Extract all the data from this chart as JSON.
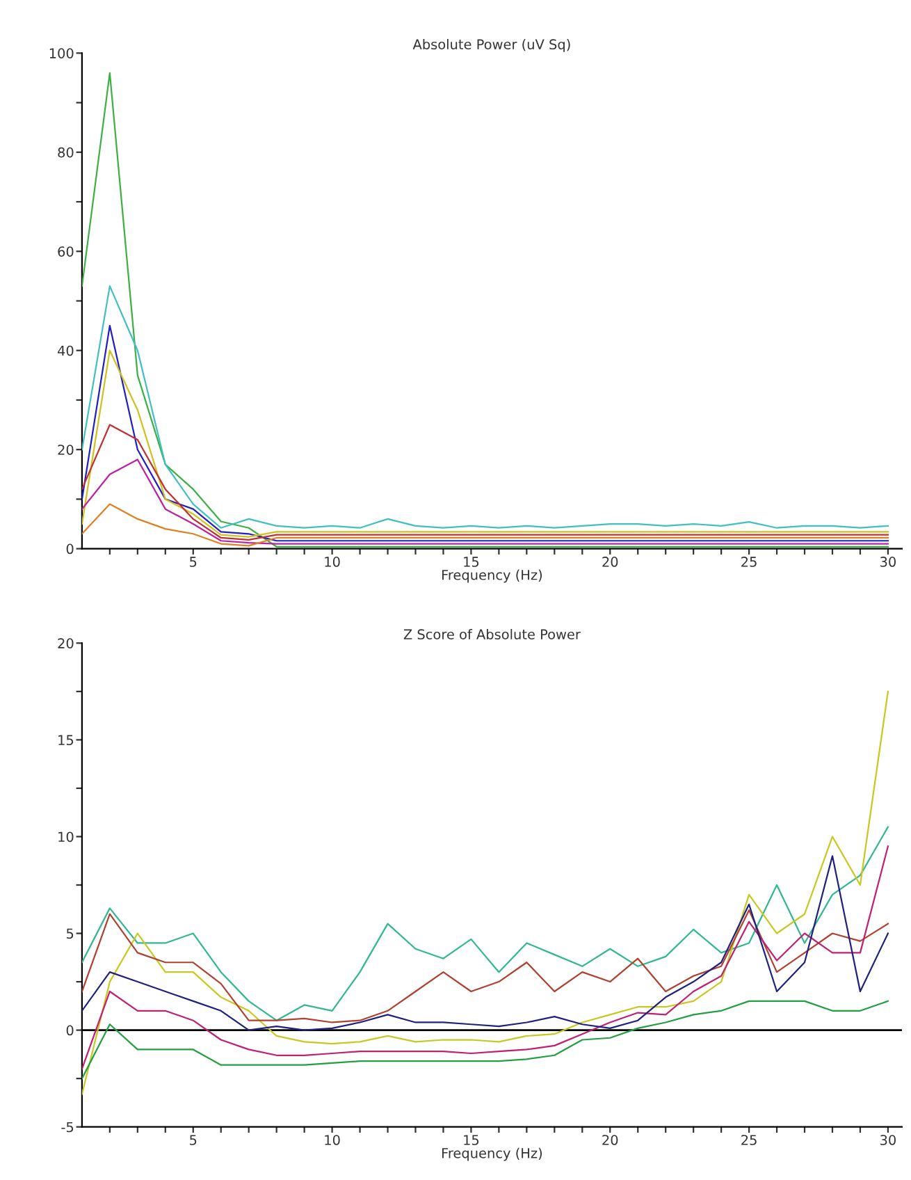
{
  "chart_data": [
    {
      "type": "line",
      "title": "Absolute Power (uV Sq)",
      "xlabel": "Frequency (Hz)",
      "x": [
        1,
        2,
        3,
        4,
        5,
        6,
        7,
        8,
        9,
        10,
        11,
        12,
        13,
        14,
        15,
        16,
        17,
        18,
        19,
        20,
        21,
        22,
        23,
        24,
        25,
        26,
        27,
        28,
        29,
        30
      ],
      "xlim": [
        1,
        30.5
      ],
      "ylim": [
        0,
        100
      ],
      "xticks": [
        {
          "value": 2,
          "label": null
        },
        {
          "value": 3,
          "label": null
        },
        {
          "value": 4,
          "label": null
        },
        5,
        {
          "value": 6,
          "label": null
        },
        {
          "value": 7,
          "label": null
        },
        {
          "value": 8,
          "label": null
        },
        {
          "value": 9,
          "label": null
        },
        10,
        {
          "value": 11,
          "label": null
        },
        {
          "value": 12,
          "label": null
        },
        {
          "value": 13,
          "label": null
        },
        {
          "value": 14,
          "label": null
        },
        15,
        {
          "value": 16,
          "label": null
        },
        {
          "value": 17,
          "label": null
        },
        {
          "value": 18,
          "label": null
        },
        {
          "value": 19,
          "label": null
        },
        20,
        {
          "value": 21,
          "label": null
        },
        {
          "value": 22,
          "label": null
        },
        {
          "value": 23,
          "label": null
        },
        {
          "value": 24,
          "label": null
        },
        25,
        {
          "value": 26,
          "label": null
        },
        {
          "value": 27,
          "label": null
        },
        {
          "value": 28,
          "label": null
        },
        {
          "value": 29,
          "label": null
        },
        30
      ],
      "yticks": [
        0,
        {
          "value": 10,
          "label": null
        },
        20,
        {
          "value": 30,
          "label": null
        },
        40,
        {
          "value": 50,
          "label": null
        },
        60,
        {
          "value": 70,
          "label": null
        },
        80,
        {
          "value": 90,
          "label": null
        },
        100
      ],
      "grid": false,
      "legend": false,
      "marker": "none",
      "line_style": "solid",
      "series": [
        {
          "color": "#3cb043",
          "values": [
            53,
            96,
            35,
            17,
            12,
            5.5,
            4.2,
            0.4,
            0.4,
            0.4,
            0.4,
            0.4,
            0.4,
            0.4,
            0.4,
            0.4,
            0.4,
            0.4,
            0.4,
            0.4,
            0.4,
            0.4,
            0.4,
            0.4,
            0.4,
            0.4,
            0.4,
            0.4,
            0.4,
            0.4
          ]
        },
        {
          "color": "#40c0c0",
          "values": [
            20,
            53,
            40,
            17,
            9,
            4.2,
            6,
            4.6,
            4.2,
            4.6,
            4.2,
            6,
            4.6,
            4.2,
            4.6,
            4.2,
            4.6,
            4.2,
            4.6,
            5,
            5,
            4.6,
            5,
            4.6,
            5.4,
            4.2,
            4.6,
            4.6,
            4.2,
            4.6
          ]
        },
        {
          "color": "#2020c0",
          "values": [
            10,
            45,
            20,
            10,
            8,
            3.4,
            3,
            1.6,
            1.6,
            1.6,
            1.6,
            1.6,
            1.6,
            1.6,
            1.6,
            1.6,
            1.6,
            1.6,
            1.6,
            1.6,
            1.6,
            1.6,
            1.6,
            1.6,
            1.6,
            1.6,
            1.6,
            1.6,
            1.6,
            1.6
          ]
        },
        {
          "color": "#d0c020",
          "values": [
            5,
            40,
            28,
            10,
            7,
            2.8,
            2.4,
            3.4,
            3.4,
            3.4,
            3.4,
            3.4,
            3.4,
            3.4,
            3.4,
            3.4,
            3.4,
            3.4,
            3.4,
            3.4,
            3.4,
            3.4,
            3.4,
            3.4,
            3.4,
            3.4,
            3.4,
            3.4,
            3.4,
            3.4
          ]
        },
        {
          "color": "#c03030",
          "values": [
            12,
            25,
            22,
            12,
            6,
            2.2,
            1.8,
            2.8,
            2.8,
            2.8,
            2.8,
            2.8,
            2.8,
            2.8,
            2.8,
            2.8,
            2.8,
            2.8,
            2.8,
            2.8,
            2.8,
            2.8,
            2.8,
            2.8,
            2.8,
            2.8,
            2.8,
            2.8,
            2.8,
            2.8
          ]
        },
        {
          "color": "#c020a0",
          "values": [
            8,
            15,
            18,
            8,
            5,
            1.6,
            1.2,
            1.0,
            1.0,
            1.0,
            1.0,
            1.0,
            1.0,
            1.0,
            1.0,
            1.0,
            1.0,
            1.0,
            1.0,
            1.0,
            1.0,
            1.0,
            1.0,
            1.0,
            1.0,
            1.0,
            1.0,
            1.0,
            1.0,
            1.0
          ]
        },
        {
          "color": "#e08020",
          "values": [
            3,
            9,
            6,
            4,
            3,
            1.0,
            0.6,
            2.2,
            2.2,
            2.2,
            2.2,
            2.2,
            2.2,
            2.2,
            2.2,
            2.2,
            2.2,
            2.2,
            2.2,
            2.2,
            2.2,
            2.2,
            2.2,
            2.2,
            2.2,
            2.2,
            2.2,
            2.2,
            2.2,
            2.2
          ]
        }
      ]
    },
    {
      "type": "line",
      "title": "Z Score of Absolute Power",
      "xlabel": "Frequency (Hz)",
      "x": [
        1,
        2,
        3,
        4,
        5,
        6,
        7,
        8,
        9,
        10,
        11,
        12,
        13,
        14,
        15,
        16,
        17,
        18,
        19,
        20,
        21,
        22,
        23,
        24,
        25,
        26,
        27,
        28,
        29,
        30
      ],
      "xlim": [
        1,
        30.5
      ],
      "ylim": [
        -5,
        20
      ],
      "xticks": [
        {
          "value": 2,
          "label": null
        },
        {
          "value": 3,
          "label": null
        },
        {
          "value": 4,
          "label": null
        },
        5,
        {
          "value": 6,
          "label": null
        },
        {
          "value": 7,
          "label": null
        },
        {
          "value": 8,
          "label": null
        },
        {
          "value": 9,
          "label": null
        },
        10,
        {
          "value": 11,
          "label": null
        },
        {
          "value": 12,
          "label": null
        },
        {
          "value": 13,
          "label": null
        },
        {
          "value": 14,
          "label": null
        },
        15,
        {
          "value": 16,
          "label": null
        },
        {
          "value": 17,
          "label": null
        },
        {
          "value": 18,
          "label": null
        },
        {
          "value": 19,
          "label": null
        },
        20,
        {
          "value": 21,
          "label": null
        },
        {
          "value": 22,
          "label": null
        },
        {
          "value": 23,
          "label": null
        },
        {
          "value": 24,
          "label": null
        },
        25,
        {
          "value": 26,
          "label": null
        },
        {
          "value": 27,
          "label": null
        },
        {
          "value": 28,
          "label": null
        },
        {
          "value": 29,
          "label": null
        },
        30
      ],
      "yticks": [
        -5,
        {
          "value": -2.5,
          "label": null
        },
        0,
        {
          "value": 2.5,
          "label": null
        },
        5,
        {
          "value": 7.5,
          "label": null
        },
        10,
        {
          "value": 12.5,
          "label": null
        },
        15,
        {
          "value": 17.5,
          "label": null
        },
        20
      ],
      "grid": false,
      "legend": false,
      "marker": "none",
      "line_style": "solid",
      "ref_lines": [
        {
          "axis": "y",
          "value": 0,
          "color": "#000000"
        }
      ],
      "series": [
        {
          "color": "#30b890",
          "values": [
            3.5,
            6.3,
            4.5,
            4.5,
            5,
            3,
            1.5,
            0.5,
            1.3,
            1,
            3,
            5.5,
            4.2,
            3.7,
            4.7,
            3,
            4.5,
            3.9,
            3.3,
            4.2,
            3.3,
            3.8,
            5.2,
            4,
            4.5,
            7.5,
            4.5,
            7,
            8,
            10.5
          ]
        },
        {
          "color": "#c8c820",
          "values": [
            -3.3,
            2.5,
            5,
            3,
            3,
            1.7,
            1,
            -0.3,
            -0.6,
            -0.7,
            -0.6,
            -0.3,
            -0.6,
            -0.5,
            -0.5,
            -0.6,
            -0.3,
            -0.2,
            0.4,
            0.8,
            1.2,
            1.2,
            1.5,
            2.5,
            7,
            5,
            6,
            10,
            7.5,
            17.5
          ]
        },
        {
          "color": "#b04030",
          "values": [
            2,
            6,
            4,
            3.5,
            3.5,
            2.4,
            0.5,
            0.5,
            0.6,
            0.4,
            0.5,
            1,
            2,
            3,
            2,
            2.5,
            3.5,
            2,
            3,
            2.5,
            3.7,
            2,
            2.8,
            3.3,
            6.2,
            3,
            4,
            5,
            4.6,
            5.5
          ]
        },
        {
          "color": "#c02070",
          "values": [
            -2,
            2,
            1,
            1,
            0.5,
            -0.5,
            -1,
            -1.3,
            -1.3,
            -1.2,
            -1.1,
            -1.1,
            -1.1,
            -1.1,
            -1.2,
            -1.1,
            -1,
            -0.8,
            -0.2,
            0.4,
            0.9,
            0.8,
            2,
            2.8,
            5.6,
            3.6,
            5,
            4,
            4,
            9.5
          ]
        },
        {
          "color": "#202080",
          "values": [
            1,
            3,
            2.5,
            2,
            1.5,
            1,
            0,
            0.2,
            0,
            0.1,
            0.4,
            0.8,
            0.4,
            0.4,
            0.3,
            0.2,
            0.4,
            0.7,
            0.3,
            0.1,
            0.5,
            1.7,
            2.5,
            3.5,
            6.5,
            2,
            3.5,
            9,
            2,
            5
          ]
        },
        {
          "color": "#20a040",
          "values": [
            -2.5,
            0.3,
            -1,
            -1,
            -1,
            -1.8,
            -1.8,
            -1.8,
            -1.8,
            -1.7,
            -1.6,
            -1.6,
            -1.6,
            -1.6,
            -1.6,
            -1.6,
            -1.5,
            -1.3,
            -0.5,
            -0.4,
            0.1,
            0.4,
            0.8,
            1,
            1.5,
            1.5,
            1.5,
            1,
            1,
            1.5
          ]
        }
      ]
    }
  ]
}
